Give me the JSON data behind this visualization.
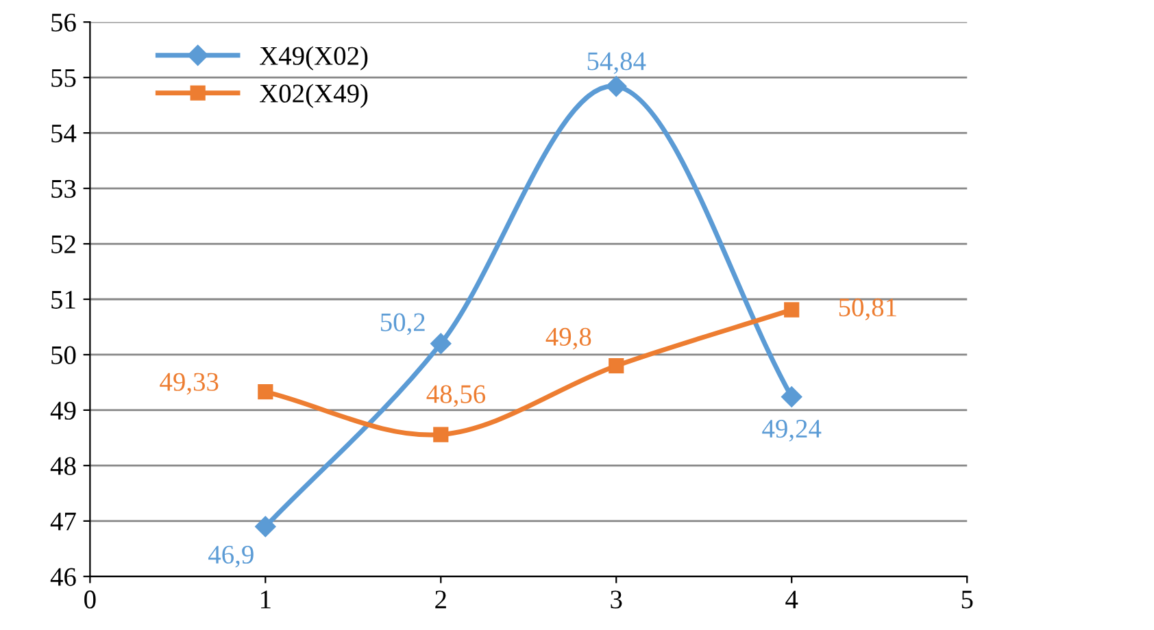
{
  "chart_data": {
    "type": "line",
    "x": [
      1,
      2,
      3,
      4
    ],
    "series": [
      {
        "name": "X49(X02)",
        "color": "#5b9bd5",
        "marker": "diamond",
        "values": [
          46.9,
          50.2,
          54.84,
          49.24
        ],
        "value_labels": [
          "46,9",
          "50,2",
          "54,84",
          "49,24"
        ]
      },
      {
        "name": "X02(X49)",
        "color": "#ed7d31",
        "marker": "square",
        "values": [
          49.33,
          48.56,
          49.8,
          50.81
        ],
        "value_labels": [
          "49,33",
          "48,56",
          "49,8",
          "50,81"
        ]
      }
    ],
    "xlim": [
      0,
      5
    ],
    "xticks": [
      0,
      1,
      2,
      3,
      4,
      5
    ],
    "ylim": [
      46,
      56
    ],
    "yticks": [
      46,
      47,
      48,
      49,
      50,
      51,
      52,
      53,
      54,
      55,
      56
    ],
    "grid": "y",
    "legend": "top left",
    "line_style": "solid"
  }
}
